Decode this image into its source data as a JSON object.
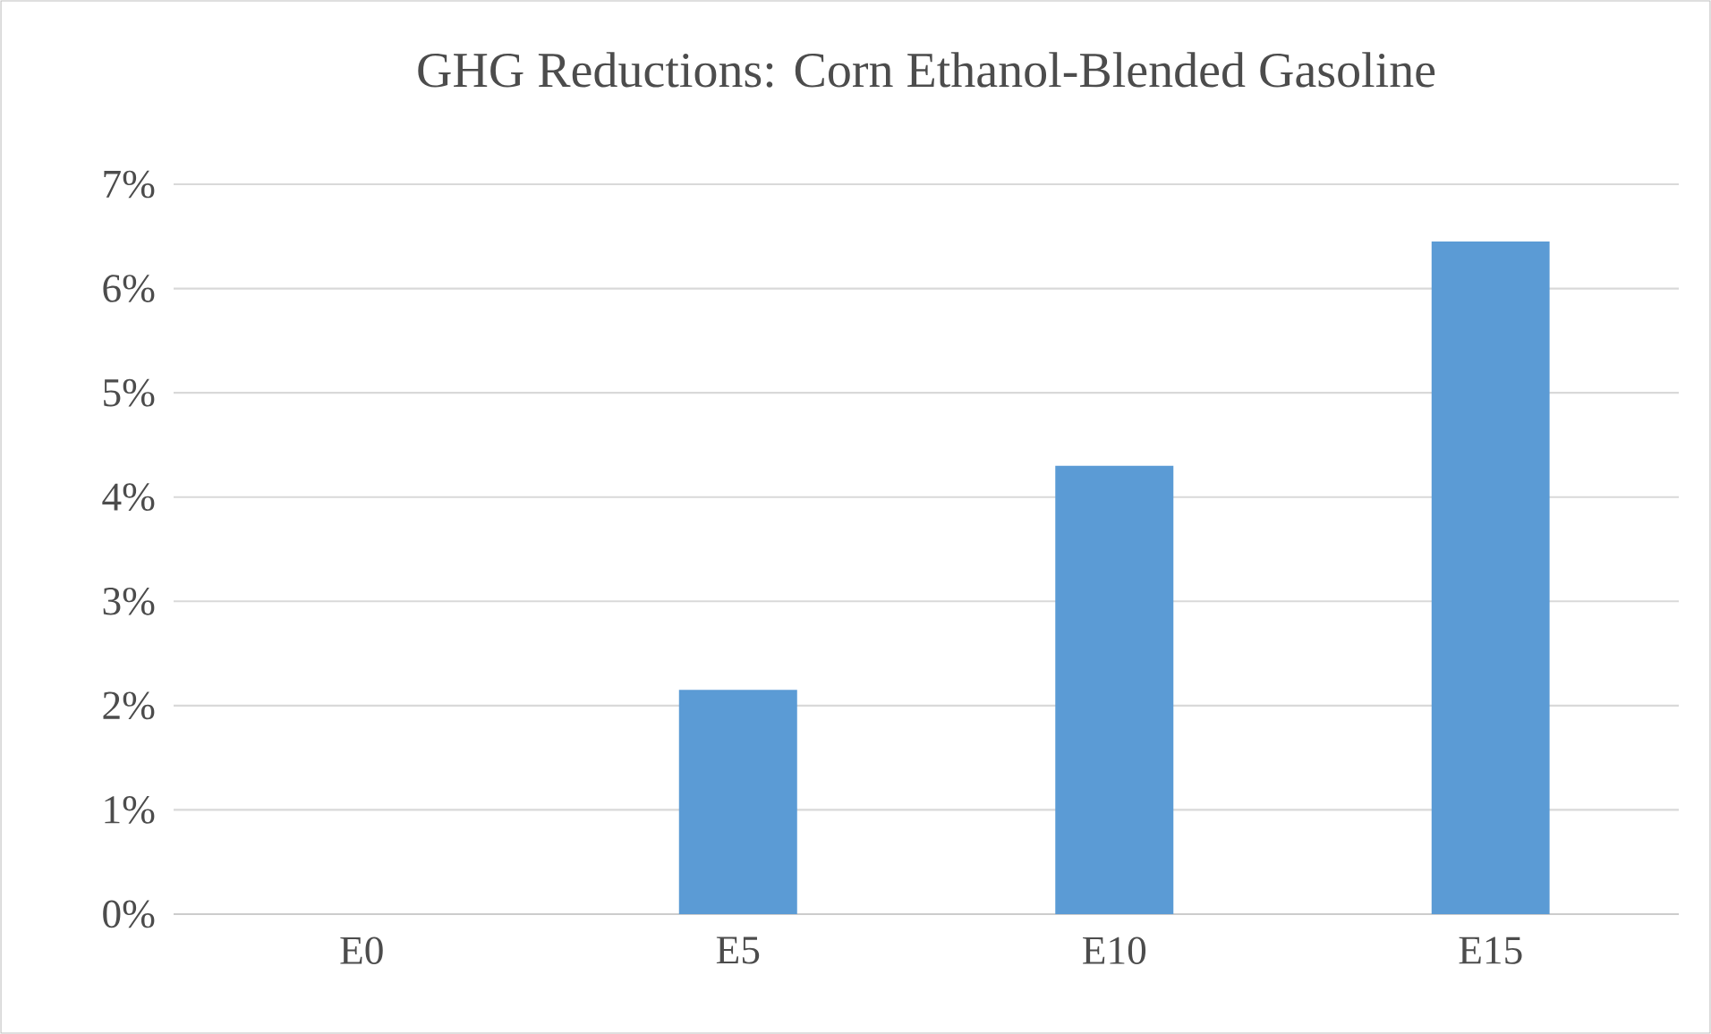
{
  "chart_data": {
    "type": "bar",
    "title": "GHG Reductions: Corn Ethanol-Blended Gasoline",
    "categories": [
      "E0",
      "E5",
      "E10",
      "E15"
    ],
    "values": [
      0,
      2.15,
      4.3,
      6.45
    ],
    "color": "#5b9bd5",
    "ylim": [
      0,
      7
    ],
    "yticks": [
      {
        "value": 0,
        "label": "0%"
      },
      {
        "value": 1,
        "label": "1%"
      },
      {
        "value": 2,
        "label": "2%"
      },
      {
        "value": 3,
        "label": "3%"
      },
      {
        "value": 4,
        "label": "4%"
      },
      {
        "value": 5,
        "label": "5%"
      },
      {
        "value": 6,
        "label": "6%"
      },
      {
        "value": 7,
        "label": "7%"
      }
    ],
    "grid": "y"
  }
}
